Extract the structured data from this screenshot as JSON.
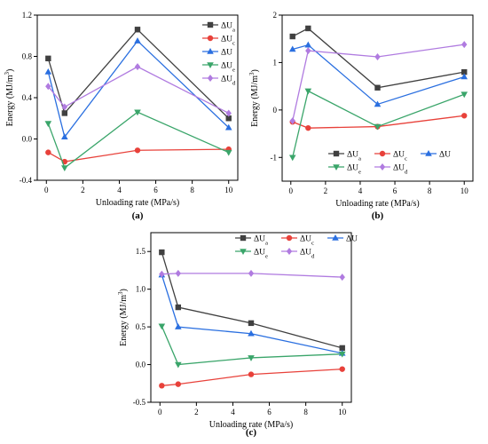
{
  "colors": {
    "dUa": "#404040",
    "dUc": "#e8413a",
    "dU": "#2a6fe0",
    "dUe": "#3aa56a",
    "dUd": "#b07be0"
  },
  "chart_data": [
    {
      "type": "line",
      "panel_label": "(a)",
      "xlabel": "Unloading rate (MPa/s)",
      "ylabel": "Energy (MJ/m3)",
      "xlim": [
        -0.5,
        10.5
      ],
      "ylim": [
        -0.4,
        1.2
      ],
      "xticks": [
        0,
        2,
        4,
        6,
        8,
        10
      ],
      "yticks": [
        -0.4,
        0.0,
        0.4,
        0.8,
        1.2
      ],
      "ytick_labels": [
        "-0.4",
        "0.0",
        "0.4",
        "0.8",
        "1.2"
      ],
      "x": [
        0.1,
        1,
        5,
        10
      ],
      "grid": false,
      "legend_placement": "right, vertical",
      "series": [
        {
          "key": "dUa",
          "name": "ΔUa",
          "values": [
            0.78,
            0.25,
            1.06,
            0.2
          ]
        },
        {
          "key": "dUc",
          "name": "ΔUc",
          "values": [
            -0.13,
            -0.22,
            -0.11,
            -0.1
          ]
        },
        {
          "key": "dU",
          "name": "ΔU",
          "values": [
            0.65,
            0.02,
            0.95,
            0.11
          ]
        },
        {
          "key": "dUe",
          "name": "ΔUe",
          "values": [
            0.15,
            -0.28,
            0.26,
            -0.13
          ]
        },
        {
          "key": "dUd",
          "name": "ΔUd",
          "values": [
            0.51,
            0.31,
            0.7,
            0.25
          ]
        }
      ]
    },
    {
      "type": "line",
      "panel_label": "(b)",
      "xlabel": "Unloading rate (MPa/s)",
      "ylabel": "Energy (MJ/m3)",
      "xlim": [
        -0.5,
        10.5
      ],
      "ylim": [
        -1.5,
        2.0
      ],
      "xticks": [
        0,
        2,
        4,
        6,
        8,
        10
      ],
      "yticks": [
        -1,
        0,
        1,
        2
      ],
      "ytick_labels": [
        "-1",
        "0",
        "1",
        "2"
      ],
      "x": [
        0.1,
        1,
        5,
        10
      ],
      "grid": false,
      "legend_placement": "bottom-right",
      "series": [
        {
          "key": "dUa",
          "name": "ΔUa",
          "values": [
            1.55,
            1.72,
            0.47,
            0.8
          ]
        },
        {
          "key": "dUc",
          "name": "ΔUc",
          "values": [
            -0.25,
            -0.38,
            -0.35,
            -0.12
          ]
        },
        {
          "key": "dU",
          "name": "ΔU",
          "values": [
            1.28,
            1.37,
            0.12,
            0.7
          ]
        },
        {
          "key": "dUe",
          "name": "ΔUe",
          "values": [
            -1.0,
            0.4,
            -0.35,
            0.33
          ]
        },
        {
          "key": "dUd",
          "name": "ΔUd",
          "values": [
            -0.23,
            1.25,
            1.12,
            1.38
          ]
        }
      ]
    },
    {
      "type": "line",
      "panel_label": "(c)",
      "xlabel": "Unloading rate (MPa/s)",
      "ylabel": "Energy (MJ/m3)",
      "xlim": [
        -0.5,
        10.5
      ],
      "ylim": [
        -0.5,
        1.75
      ],
      "xticks": [
        0,
        2,
        4,
        6,
        8,
        10
      ],
      "yticks": [
        -0.5,
        0.0,
        0.5,
        1.0,
        1.5
      ],
      "ytick_labels": [
        "-0.5",
        "0.0",
        "0.5",
        "1.0",
        "1.5"
      ],
      "x": [
        0.1,
        1,
        5,
        10
      ],
      "grid": false,
      "legend_placement": "top-right",
      "series": [
        {
          "key": "dUa",
          "name": "ΔUa",
          "values": [
            1.49,
            0.76,
            0.55,
            0.22
          ]
        },
        {
          "key": "dUc",
          "name": "ΔUc",
          "values": [
            -0.28,
            -0.26,
            -0.13,
            -0.06
          ]
        },
        {
          "key": "dU",
          "name": "ΔU",
          "values": [
            1.19,
            0.5,
            0.41,
            0.15
          ]
        },
        {
          "key": "dUe",
          "name": "ΔUe",
          "values": [
            0.51,
            0.0,
            0.09,
            0.14
          ]
        },
        {
          "key": "dUd",
          "name": "ΔUd",
          "values": [
            1.2,
            1.21,
            1.21,
            1.16
          ]
        }
      ]
    }
  ]
}
